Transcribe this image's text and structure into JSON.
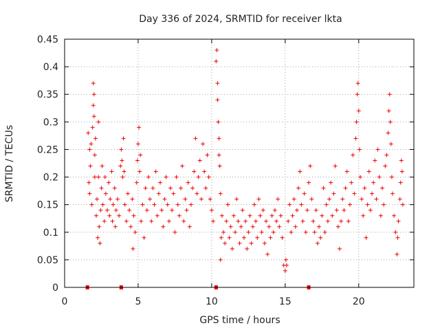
{
  "chart_data": {
    "type": "scatter",
    "title": "Day 336 of 2024, SRMTID for receiver lkta",
    "xlabel": "GPS time / hours",
    "ylabel": "SRMTID / TECUs",
    "xlim": [
      0,
      23.75
    ],
    "ylim": [
      0,
      0.45
    ],
    "x_ticks": [
      0,
      5,
      10,
      15,
      20
    ],
    "x_tick_labels": [
      "0",
      "5",
      "10",
      "15",
      "20"
    ],
    "y_ticks": [
      0,
      0.05,
      0.1,
      0.15,
      0.2,
      0.25,
      0.3,
      0.35,
      0.4,
      0.45
    ],
    "y_tick_labels": [
      "0",
      "0.05",
      "0.1",
      "0.15",
      "0.2",
      "0.25",
      "0.3",
      "0.35",
      "0.4",
      "0.45"
    ],
    "grid": true,
    "marker": "+",
    "color": "#ee0000",
    "zero_markers_x": [
      1.55,
      3.85,
      10.3,
      16.6
    ],
    "series": [
      {
        "name": "SRMTID",
        "points": [
          [
            1.6,
            0.28
          ],
          [
            1.65,
            0.19
          ],
          [
            1.7,
            0.25
          ],
          [
            1.7,
            0.17
          ],
          [
            1.75,
            0.22
          ],
          [
            1.8,
            0.26
          ],
          [
            1.85,
            0.15
          ],
          [
            1.9,
            0.29
          ],
          [
            1.95,
            0.33
          ],
          [
            1.95,
            0.37
          ],
          [
            2.0,
            0.35
          ],
          [
            2.0,
            0.31
          ],
          [
            2.05,
            0.24
          ],
          [
            2.05,
            0.2
          ],
          [
            2.1,
            0.27
          ],
          [
            2.15,
            0.13
          ],
          [
            2.2,
            0.16
          ],
          [
            2.25,
            0.09
          ],
          [
            2.3,
            0.3
          ],
          [
            2.3,
            0.2
          ],
          [
            2.35,
            0.11
          ],
          [
            2.4,
            0.08
          ],
          [
            2.45,
            0.14
          ],
          [
            2.5,
            0.18
          ],
          [
            2.55,
            0.22
          ],
          [
            2.6,
            0.15
          ],
          [
            2.7,
            0.12
          ],
          [
            2.75,
            0.2
          ],
          [
            2.8,
            0.17
          ],
          [
            2.9,
            0.14
          ],
          [
            3.0,
            0.19
          ],
          [
            3.05,
            0.13
          ],
          [
            3.1,
            0.16
          ],
          [
            3.2,
            0.21
          ],
          [
            3.25,
            0.12
          ],
          [
            3.3,
            0.15
          ],
          [
            3.4,
            0.18
          ],
          [
            3.45,
            0.11
          ],
          [
            3.5,
            0.14
          ],
          [
            3.6,
            0.16
          ],
          [
            3.7,
            0.13
          ],
          [
            3.8,
            0.22
          ],
          [
            3.85,
            0.25
          ],
          [
            3.9,
            0.23
          ],
          [
            3.95,
            0.2
          ],
          [
            4.0,
            0.27
          ],
          [
            4.05,
            0.21
          ],
          [
            4.1,
            0.15
          ],
          [
            4.2,
            0.12
          ],
          [
            4.3,
            0.17
          ],
          [
            4.4,
            0.14
          ],
          [
            4.5,
            0.11
          ],
          [
            4.6,
            0.16
          ],
          [
            4.65,
            0.07
          ],
          [
            4.7,
            0.13
          ],
          [
            4.8,
            0.1
          ],
          [
            4.9,
            0.19
          ],
          [
            4.95,
            0.23
          ],
          [
            5.0,
            0.26
          ],
          [
            5.05,
            0.29
          ],
          [
            5.1,
            0.21
          ],
          [
            5.15,
            0.24
          ],
          [
            5.2,
            0.12
          ],
          [
            5.3,
            0.15
          ],
          [
            5.4,
            0.09
          ],
          [
            5.5,
            0.18
          ],
          [
            5.6,
            0.14
          ],
          [
            5.7,
            0.2
          ],
          [
            5.8,
            0.16
          ],
          [
            5.9,
            0.12
          ],
          [
            6.0,
            0.18
          ],
          [
            6.1,
            0.15
          ],
          [
            6.2,
            0.21
          ],
          [
            6.3,
            0.13
          ],
          [
            6.4,
            0.17
          ],
          [
            6.5,
            0.19
          ],
          [
            6.6,
            0.14
          ],
          [
            6.7,
            0.11
          ],
          [
            6.8,
            0.16
          ],
          [
            6.9,
            0.2
          ],
          [
            7.0,
            0.15
          ],
          [
            7.1,
            0.12
          ],
          [
            7.2,
            0.18
          ],
          [
            7.3,
            0.14
          ],
          [
            7.4,
            0.17
          ],
          [
            7.5,
            0.1
          ],
          [
            7.6,
            0.2
          ],
          [
            7.7,
            0.15
          ],
          [
            7.8,
            0.13
          ],
          [
            7.9,
            0.18
          ],
          [
            8.0,
            0.22
          ],
          [
            8.1,
            0.12
          ],
          [
            8.2,
            0.16
          ],
          [
            8.3,
            0.14
          ],
          [
            8.4,
            0.19
          ],
          [
            8.5,
            0.11
          ],
          [
            8.6,
            0.15
          ],
          [
            8.7,
            0.18
          ],
          [
            8.8,
            0.21
          ],
          [
            8.9,
            0.27
          ],
          [
            9.0,
            0.17
          ],
          [
            9.1,
            0.2
          ],
          [
            9.2,
            0.23
          ],
          [
            9.3,
            0.16
          ],
          [
            9.4,
            0.26
          ],
          [
            9.5,
            0.21
          ],
          [
            9.6,
            0.18
          ],
          [
            9.7,
            0.24
          ],
          [
            9.8,
            0.2
          ],
          [
            9.9,
            0.16
          ],
          [
            10.0,
            0.14
          ],
          [
            10.1,
            0.12
          ],
          [
            10.3,
            0.41
          ],
          [
            10.35,
            0.43
          ],
          [
            10.4,
            0.37
          ],
          [
            10.4,
            0.34
          ],
          [
            10.45,
            0.3
          ],
          [
            10.5,
            0.27
          ],
          [
            10.5,
            0.24
          ],
          [
            10.55,
            0.22
          ],
          [
            10.6,
            0.17
          ],
          [
            10.6,
            0.05
          ],
          [
            10.65,
            0.09
          ],
          [
            10.7,
            0.13
          ],
          [
            10.8,
            0.1
          ],
          [
            10.9,
            0.08
          ],
          [
            11.0,
            0.12
          ],
          [
            11.1,
            0.15
          ],
          [
            11.2,
            0.09
          ],
          [
            11.3,
            0.11
          ],
          [
            11.4,
            0.07
          ],
          [
            11.5,
            0.13
          ],
          [
            11.6,
            0.1
          ],
          [
            11.7,
            0.16
          ],
          [
            11.8,
            0.12
          ],
          [
            11.9,
            0.08
          ],
          [
            12.0,
            0.11
          ],
          [
            12.1,
            0.14
          ],
          [
            12.2,
            0.09
          ],
          [
            12.3,
            0.12
          ],
          [
            12.4,
            0.07
          ],
          [
            12.5,
            0.1
          ],
          [
            12.6,
            0.13
          ],
          [
            12.7,
            0.08
          ],
          [
            12.8,
            0.11
          ],
          [
            12.9,
            0.15
          ],
          [
            13.0,
            0.12
          ],
          [
            13.1,
            0.09
          ],
          [
            13.2,
            0.16
          ],
          [
            13.3,
            0.13
          ],
          [
            13.4,
            0.1
          ],
          [
            13.5,
            0.14
          ],
          [
            13.6,
            0.08
          ],
          [
            13.7,
            0.12
          ],
          [
            13.8,
            0.06
          ],
          [
            13.9,
            0.11
          ],
          [
            14.0,
            0.09
          ],
          [
            14.1,
            0.13
          ],
          [
            14.2,
            0.1
          ],
          [
            14.3,
            0.14
          ],
          [
            14.4,
            0.12
          ],
          [
            14.5,
            0.16
          ],
          [
            14.6,
            0.11
          ],
          [
            14.7,
            0.13
          ],
          [
            14.8,
            0.09
          ],
          [
            14.9,
            0.04
          ],
          [
            15.0,
            0.03
          ],
          [
            15.05,
            0.05
          ],
          [
            15.1,
            0.04
          ],
          [
            15.2,
            0.12
          ],
          [
            15.3,
            0.15
          ],
          [
            15.4,
            0.1
          ],
          [
            15.5,
            0.13
          ],
          [
            15.6,
            0.16
          ],
          [
            15.7,
            0.11
          ],
          [
            15.8,
            0.14
          ],
          [
            15.9,
            0.18
          ],
          [
            16.0,
            0.21
          ],
          [
            16.1,
            0.15
          ],
          [
            16.2,
            0.12
          ],
          [
            16.3,
            0.17
          ],
          [
            16.4,
            0.1
          ],
          [
            16.5,
            0.14
          ],
          [
            16.6,
            0.19
          ],
          [
            16.7,
            0.22
          ],
          [
            16.8,
            0.16
          ],
          [
            16.9,
            0.12
          ],
          [
            17.0,
            0.1
          ],
          [
            17.1,
            0.14
          ],
          [
            17.2,
            0.08
          ],
          [
            17.3,
            0.11
          ],
          [
            17.4,
            0.09
          ],
          [
            17.5,
            0.13
          ],
          [
            17.6,
            0.18
          ],
          [
            17.7,
            0.1
          ],
          [
            17.8,
            0.15
          ],
          [
            17.9,
            0.12
          ],
          [
            18.0,
            0.16
          ],
          [
            18.1,
            0.19
          ],
          [
            18.2,
            0.13
          ],
          [
            18.3,
            0.17
          ],
          [
            18.4,
            0.22
          ],
          [
            18.5,
            0.14
          ],
          [
            18.6,
            0.11
          ],
          [
            18.7,
            0.07
          ],
          [
            18.8,
            0.12
          ],
          [
            18.9,
            0.16
          ],
          [
            19.0,
            0.14
          ],
          [
            19.1,
            0.18
          ],
          [
            19.2,
            0.21
          ],
          [
            19.3,
            0.12
          ],
          [
            19.4,
            0.15
          ],
          [
            19.5,
            0.19
          ],
          [
            19.6,
            0.24
          ],
          [
            19.7,
            0.17
          ],
          [
            19.8,
            0.27
          ],
          [
            19.85,
            0.3
          ],
          [
            19.9,
            0.35
          ],
          [
            19.95,
            0.37
          ],
          [
            20.0,
            0.32
          ],
          [
            20.05,
            0.25
          ],
          [
            20.1,
            0.2
          ],
          [
            20.2,
            0.16
          ],
          [
            20.3,
            0.13
          ],
          [
            20.4,
            0.18
          ],
          [
            20.5,
            0.09
          ],
          [
            20.6,
            0.15
          ],
          [
            20.7,
            0.21
          ],
          [
            20.8,
            0.14
          ],
          [
            20.9,
            0.17
          ],
          [
            21.0,
            0.19
          ],
          [
            21.1,
            0.23
          ],
          [
            21.2,
            0.16
          ],
          [
            21.3,
            0.25
          ],
          [
            21.4,
            0.2
          ],
          [
            21.5,
            0.13
          ],
          [
            21.6,
            0.18
          ],
          [
            21.7,
            0.15
          ],
          [
            21.8,
            0.22
          ],
          [
            21.9,
            0.24
          ],
          [
            22.0,
            0.28
          ],
          [
            22.05,
            0.32
          ],
          [
            22.1,
            0.35
          ],
          [
            22.15,
            0.3
          ],
          [
            22.2,
            0.26
          ],
          [
            22.25,
            0.2
          ],
          [
            22.3,
            0.17
          ],
          [
            22.4,
            0.13
          ],
          [
            22.5,
            0.1
          ],
          [
            22.6,
            0.06
          ],
          [
            22.65,
            0.09
          ],
          [
            22.7,
            0.12
          ],
          [
            22.8,
            0.16
          ],
          [
            22.85,
            0.19
          ],
          [
            22.9,
            0.23
          ],
          [
            22.95,
            0.21
          ],
          [
            23.0,
            0.15
          ]
        ]
      }
    ]
  }
}
